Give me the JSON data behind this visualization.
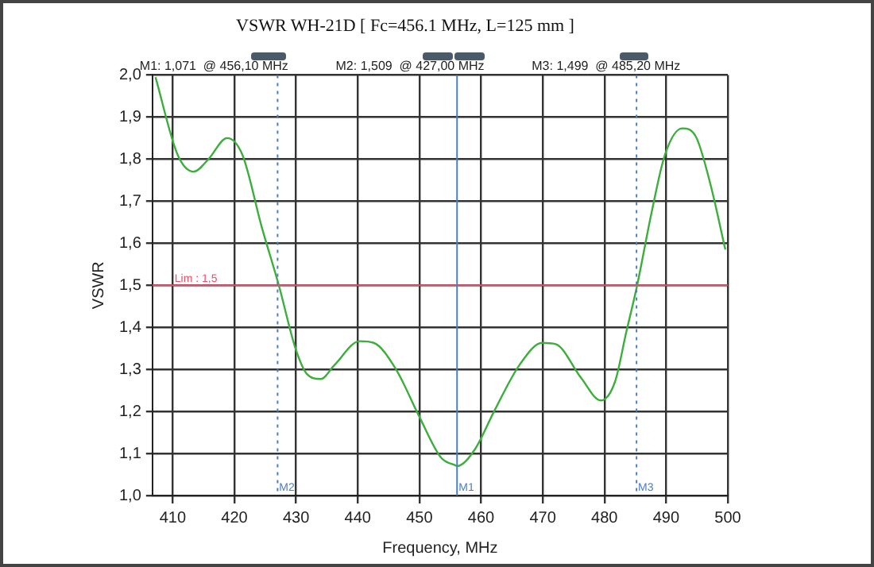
{
  "chart_data": {
    "type": "line",
    "title": "VSWR WH-21D [ Fc=456.1 MHz, L=125 mm ]",
    "xlabel": "Frequency, MHz",
    "ylabel": "VSWR",
    "annotations": [
      "M1: 1,071  @ 456,10 MHz",
      "M2: 1,509  @ 427,00 MHz",
      "M3: 1,499  @ 485,20 MHz"
    ],
    "series": [
      {
        "color": "#3cae3c",
        "x": [
          407.2,
          410.8,
          413.4,
          415.8,
          418.8,
          421.3,
          424.4,
          427.2,
          429.9,
          431.7,
          434.0,
          436.2,
          440.3,
          442.6,
          446.2,
          449.9,
          453.5,
          455.8,
          456.1,
          459.0,
          462.1,
          466.2,
          469.9,
          472.1,
          476.2,
          479.4,
          481.7,
          483.5,
          485.3,
          487.6,
          489.8,
          492.6,
          494.8,
          497.1,
          499.6
        ],
        "values": [
          1.995,
          1.81,
          1.77,
          1.8,
          1.85,
          1.81,
          1.64,
          1.5,
          1.35,
          1.29,
          1.277,
          1.31,
          1.367,
          1.363,
          1.3,
          1.19,
          1.09,
          1.072,
          1.07,
          1.11,
          1.2,
          1.31,
          1.363,
          1.36,
          1.28,
          1.226,
          1.27,
          1.386,
          1.5,
          1.67,
          1.81,
          1.873,
          1.854,
          1.745,
          1.585
        ]
      }
    ],
    "xlim": [
      406.7,
      500
    ],
    "xticks": [
      410,
      420,
      430,
      440,
      450,
      460,
      470,
      480,
      490,
      500
    ],
    "ylim": [
      1,
      2
    ],
    "yticks": [
      {
        "value": 1,
        "label": "1,0"
      },
      {
        "value": 1.1,
        "label": "1,1"
      },
      {
        "value": 1.2,
        "label": "1,2"
      },
      {
        "value": 1.3,
        "label": "1,3"
      },
      {
        "value": 1.4,
        "label": "1,4"
      },
      {
        "value": 1.5,
        "label": "1,5"
      },
      {
        "value": 1.6,
        "label": "1,6"
      },
      {
        "value": 1.7,
        "label": "1,7"
      },
      {
        "value": 1.8,
        "label": "1,8"
      },
      {
        "value": 1.9,
        "label": "1,9"
      },
      {
        "value": 2,
        "label": "2,0"
      }
    ],
    "grid": true,
    "legend": false,
    "marker": "none",
    "line_style": "solid",
    "ref_lines": [
      {
        "axis": "y",
        "value": 1.5,
        "label": "Lim : 1,5",
        "color": "#e8506a",
        "line_style": "solid"
      },
      {
        "axis": "x",
        "value": 456.1,
        "label": "M1",
        "color": "#4a80c0",
        "line_style": "solid"
      },
      {
        "axis": "x",
        "value": 427,
        "label": "M2",
        "color": "#4a80c0",
        "line_style": "dotted"
      },
      {
        "axis": "x",
        "value": 485.2,
        "label": "M3",
        "color": "#4a80c0",
        "line_style": "dotted"
      }
    ]
  }
}
